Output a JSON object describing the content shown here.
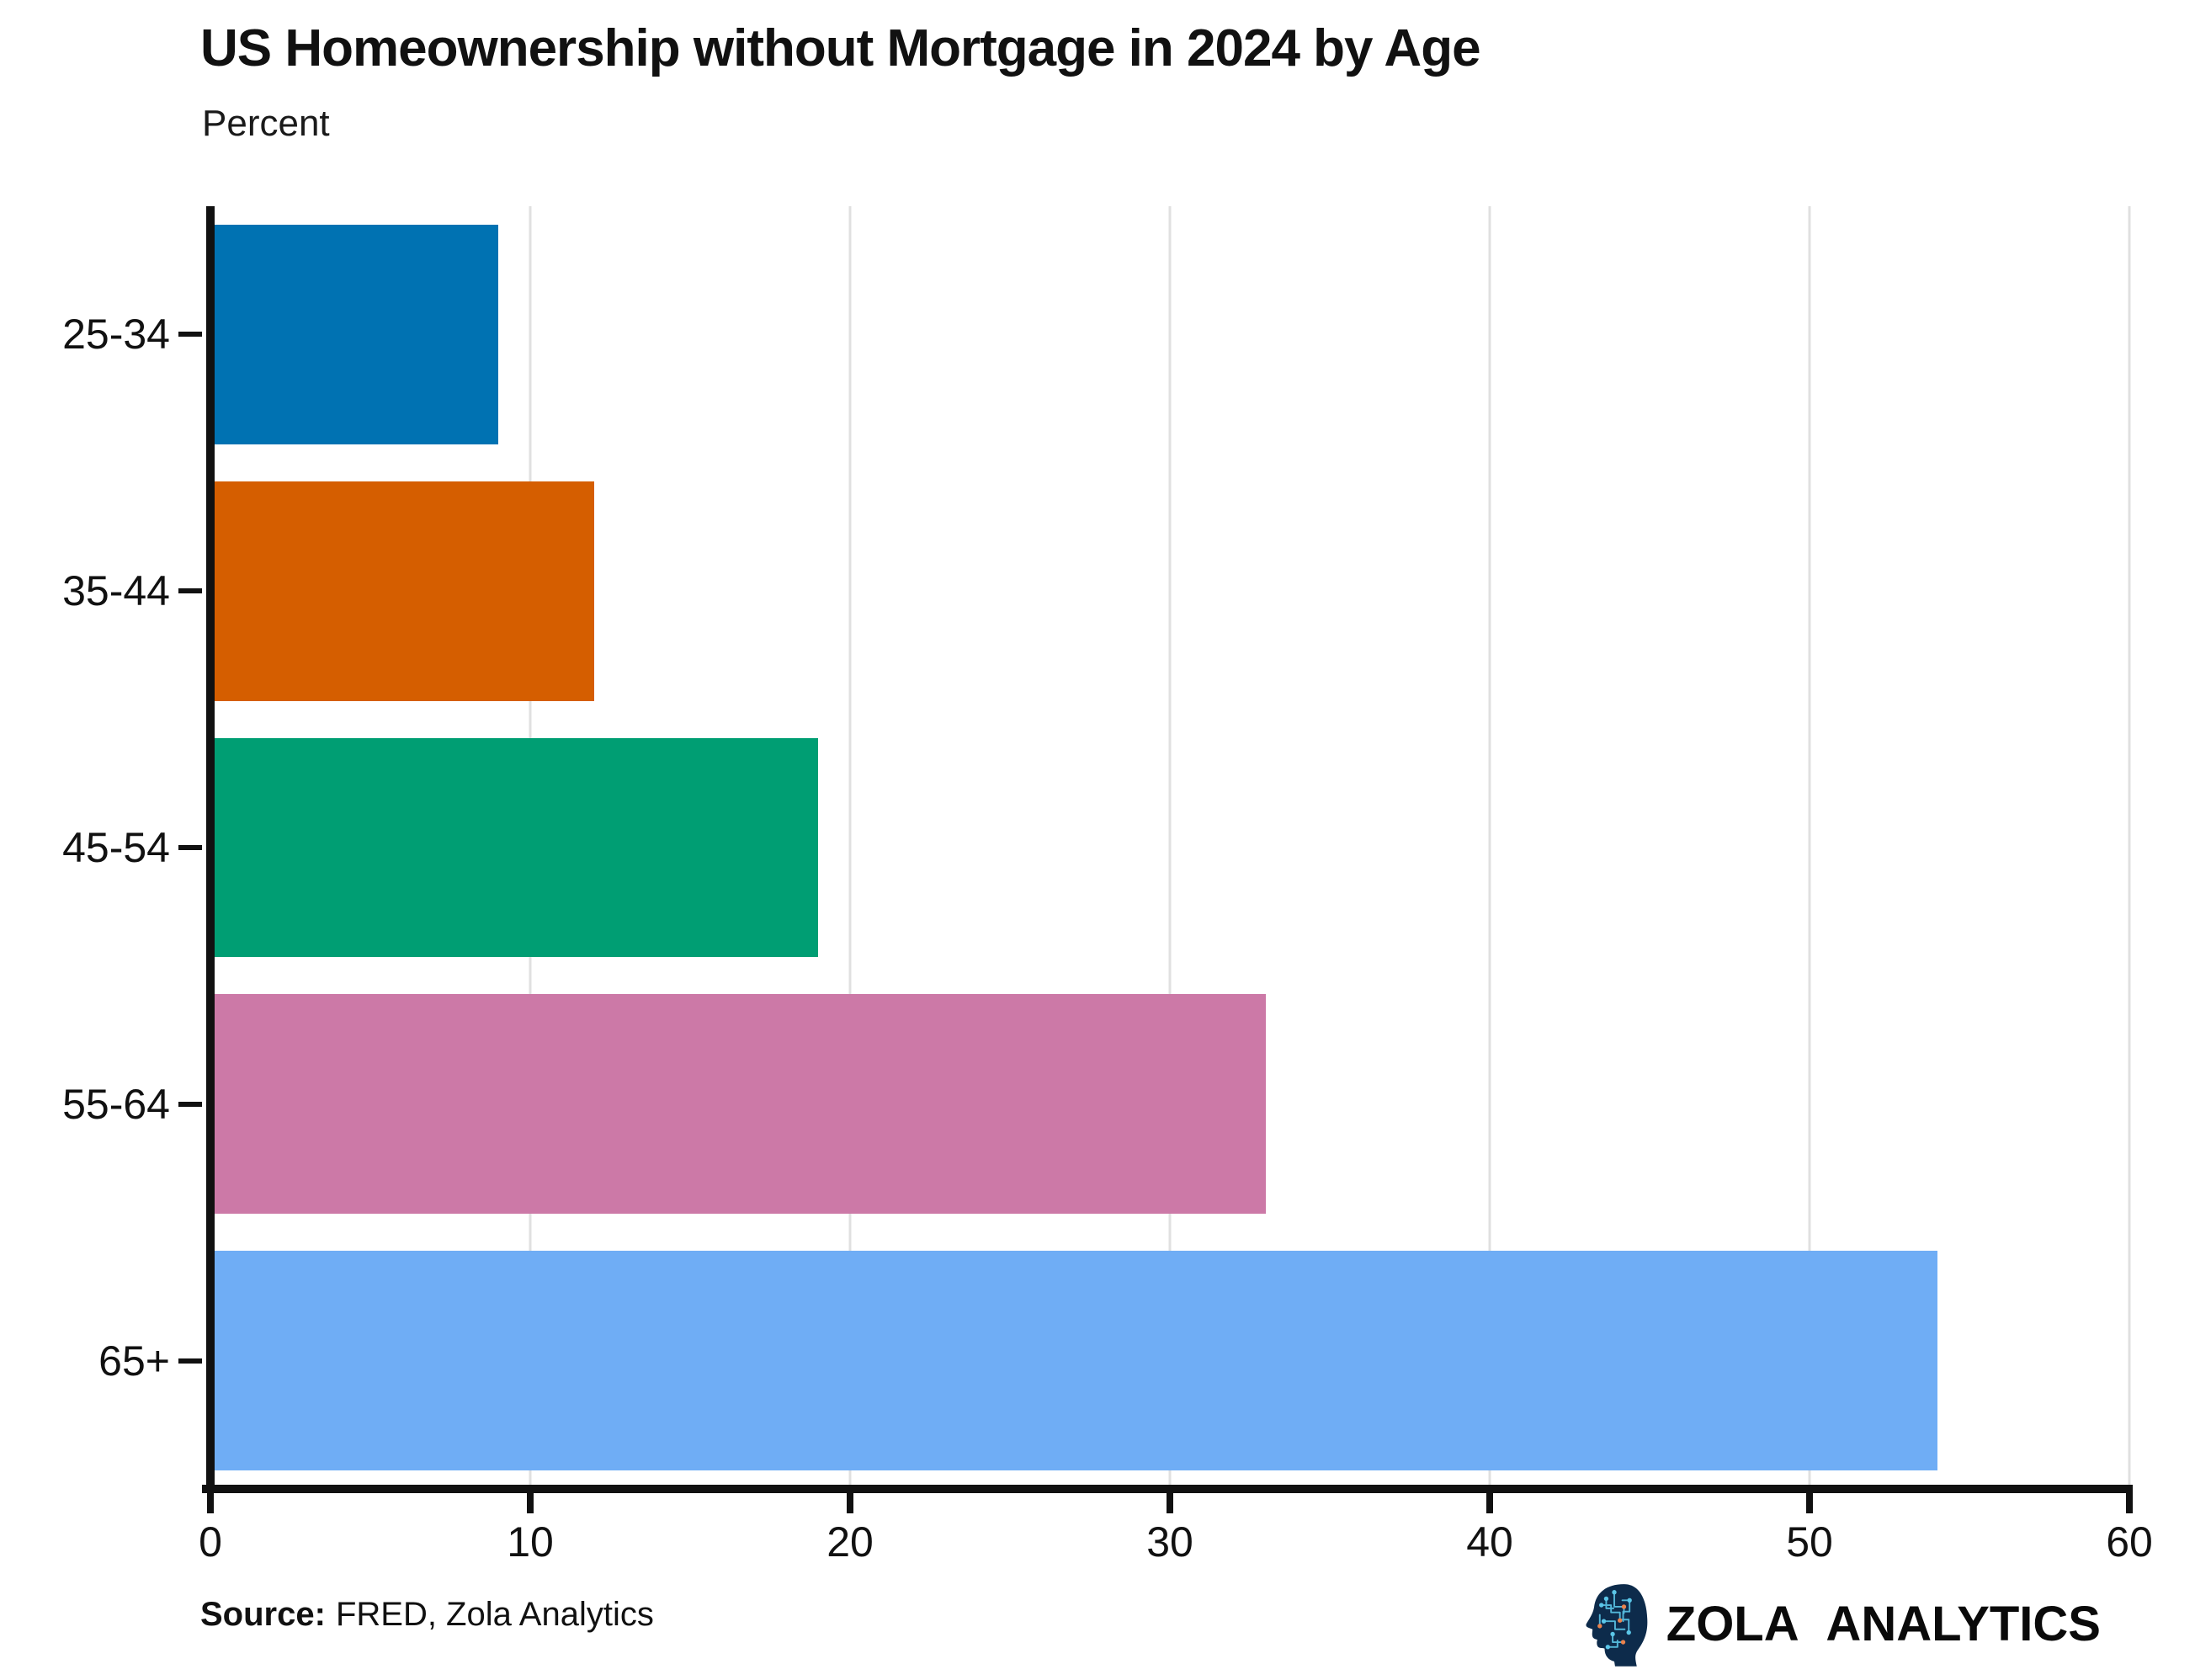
{
  "chart_data": {
    "type": "bar",
    "orientation": "horizontal",
    "title": "US Homeownership without Mortgage in 2024 by Age",
    "ylabel": "Percent",
    "xlabel": "",
    "categories": [
      "25-34",
      "35-44",
      "45-54",
      "55-64",
      "65+"
    ],
    "values": [
      9,
      12,
      19,
      33,
      54
    ],
    "bar_colors": [
      "#0072B2",
      "#D55E00",
      "#009E73",
      "#CC79A7",
      "#6FADF5"
    ],
    "xlim": [
      0,
      60
    ],
    "xticks": [
      0,
      10,
      20,
      30,
      40,
      50,
      60
    ],
    "grid": "vertical",
    "gridline_color": "#e0e0e0",
    "axis_color": "#111111",
    "legend": "none"
  },
  "footer": {
    "source_label": "Source:",
    "source_text": "FRED, Zola Analytics",
    "brand": {
      "name": "ZOLA ANALYTICS",
      "icon": "brain-circuit-head-icon",
      "icon_colors": {
        "head": "#0d2b4b",
        "circuit": "#5bc6e8",
        "accent": "#e8824d"
      }
    }
  }
}
